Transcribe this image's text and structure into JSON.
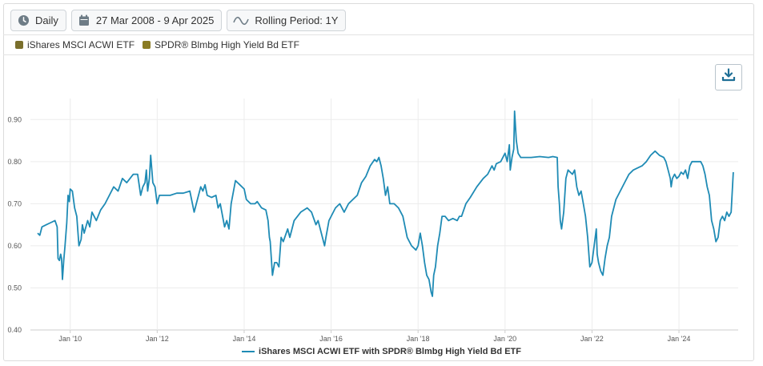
{
  "toolbar": {
    "frequency": "Daily",
    "date_range": "27 Mar 2008 - 9 Apr 2025",
    "rolling": "Rolling Period: 1Y"
  },
  "legend_top": [
    {
      "label": "iShares MSCI ACWI ETF",
      "color": "#7a6f2c"
    },
    {
      "label": "SPDR® Blmbg High Yield Bd ETF",
      "color": "#8a7b23"
    }
  ],
  "colors": {
    "line": "#1f8bb5",
    "grid": "#ececec",
    "axis": "#cccccc"
  },
  "chart_data": {
    "type": "line",
    "title": "",
    "xlabel": "",
    "ylabel": "",
    "ylim": [
      0.4,
      0.95
    ],
    "y_ticks": [
      "0.40",
      "0.50",
      "0.60",
      "0.70",
      "0.80",
      "0.90"
    ],
    "x_ticks": [
      "Jan '10",
      "Jan '12",
      "Jan '14",
      "Jan '16",
      "Jan '18",
      "Jan '20",
      "Jan '22",
      "Jan '24"
    ],
    "x_tick_years": [
      2010,
      2012,
      2014,
      2016,
      2018,
      2020,
      2022,
      2024
    ],
    "x_range": [
      2009.25,
      2025.27
    ],
    "series": [
      {
        "name": "iShares MSCI ACWI ETF with SPDR® Blmbg High Yield Bd ETF",
        "points": [
          [
            2009.25,
            0.63
          ],
          [
            2009.3,
            0.625
          ],
          [
            2009.35,
            0.645
          ],
          [
            2009.45,
            0.65
          ],
          [
            2009.55,
            0.655
          ],
          [
            2009.65,
            0.66
          ],
          [
            2009.7,
            0.645
          ],
          [
            2009.72,
            0.57
          ],
          [
            2009.75,
            0.565
          ],
          [
            2009.78,
            0.58
          ],
          [
            2009.8,
            0.57
          ],
          [
            2009.82,
            0.52
          ],
          [
            2009.85,
            0.565
          ],
          [
            2009.88,
            0.6
          ],
          [
            2009.92,
            0.655
          ],
          [
            2009.95,
            0.72
          ],
          [
            2009.98,
            0.705
          ],
          [
            2010.0,
            0.735
          ],
          [
            2010.05,
            0.73
          ],
          [
            2010.1,
            0.69
          ],
          [
            2010.15,
            0.67
          ],
          [
            2010.2,
            0.6
          ],
          [
            2010.25,
            0.615
          ],
          [
            2010.28,
            0.65
          ],
          [
            2010.32,
            0.63
          ],
          [
            2010.4,
            0.66
          ],
          [
            2010.45,
            0.645
          ],
          [
            2010.5,
            0.68
          ],
          [
            2010.6,
            0.66
          ],
          [
            2010.7,
            0.685
          ],
          [
            2010.8,
            0.7
          ],
          [
            2010.9,
            0.72
          ],
          [
            2011.0,
            0.74
          ],
          [
            2011.1,
            0.73
          ],
          [
            2011.2,
            0.76
          ],
          [
            2011.3,
            0.75
          ],
          [
            2011.45,
            0.77
          ],
          [
            2011.55,
            0.77
          ],
          [
            2011.62,
            0.72
          ],
          [
            2011.67,
            0.74
          ],
          [
            2011.72,
            0.75
          ],
          [
            2011.75,
            0.78
          ],
          [
            2011.78,
            0.73
          ],
          [
            2011.82,
            0.76
          ],
          [
            2011.85,
            0.815
          ],
          [
            2011.9,
            0.75
          ],
          [
            2011.95,
            0.74
          ],
          [
            2012.0,
            0.7
          ],
          [
            2012.05,
            0.72
          ],
          [
            2012.15,
            0.72
          ],
          [
            2012.3,
            0.72
          ],
          [
            2012.45,
            0.725
          ],
          [
            2012.6,
            0.725
          ],
          [
            2012.75,
            0.73
          ],
          [
            2012.85,
            0.68
          ],
          [
            2012.9,
            0.7
          ],
          [
            2013.0,
            0.74
          ],
          [
            2013.05,
            0.73
          ],
          [
            2013.1,
            0.745
          ],
          [
            2013.15,
            0.72
          ],
          [
            2013.25,
            0.715
          ],
          [
            2013.35,
            0.72
          ],
          [
            2013.4,
            0.69
          ],
          [
            2013.45,
            0.7
          ],
          [
            2013.55,
            0.645
          ],
          [
            2013.6,
            0.66
          ],
          [
            2013.65,
            0.64
          ],
          [
            2013.7,
            0.7
          ],
          [
            2013.8,
            0.755
          ],
          [
            2013.9,
            0.745
          ],
          [
            2014.0,
            0.735
          ],
          [
            2014.05,
            0.71
          ],
          [
            2014.15,
            0.7
          ],
          [
            2014.25,
            0.7
          ],
          [
            2014.3,
            0.705
          ],
          [
            2014.4,
            0.69
          ],
          [
            2014.5,
            0.685
          ],
          [
            2014.55,
            0.66
          ],
          [
            2014.58,
            0.62
          ],
          [
            2014.6,
            0.61
          ],
          [
            2014.65,
            0.53
          ],
          [
            2014.7,
            0.56
          ],
          [
            2014.75,
            0.56
          ],
          [
            2014.8,
            0.55
          ],
          [
            2014.85,
            0.62
          ],
          [
            2014.9,
            0.61
          ],
          [
            2015.0,
            0.64
          ],
          [
            2015.05,
            0.62
          ],
          [
            2015.15,
            0.66
          ],
          [
            2015.3,
            0.68
          ],
          [
            2015.45,
            0.69
          ],
          [
            2015.55,
            0.68
          ],
          [
            2015.65,
            0.65
          ],
          [
            2015.7,
            0.66
          ],
          [
            2015.75,
            0.64
          ],
          [
            2015.8,
            0.62
          ],
          [
            2015.85,
            0.6
          ],
          [
            2015.88,
            0.62
          ],
          [
            2015.95,
            0.66
          ],
          [
            2016.1,
            0.69
          ],
          [
            2016.2,
            0.7
          ],
          [
            2016.3,
            0.68
          ],
          [
            2016.4,
            0.7
          ],
          [
            2016.5,
            0.71
          ],
          [
            2016.6,
            0.72
          ],
          [
            2016.7,
            0.75
          ],
          [
            2016.8,
            0.765
          ],
          [
            2016.9,
            0.79
          ],
          [
            2017.0,
            0.805
          ],
          [
            2017.05,
            0.8
          ],
          [
            2017.1,
            0.81
          ],
          [
            2017.15,
            0.79
          ],
          [
            2017.2,
            0.76
          ],
          [
            2017.25,
            0.72
          ],
          [
            2017.3,
            0.74
          ],
          [
            2017.35,
            0.7
          ],
          [
            2017.45,
            0.7
          ],
          [
            2017.55,
            0.69
          ],
          [
            2017.65,
            0.67
          ],
          [
            2017.75,
            0.62
          ],
          [
            2017.85,
            0.6
          ],
          [
            2017.95,
            0.59
          ],
          [
            2018.0,
            0.6
          ],
          [
            2018.05,
            0.63
          ],
          [
            2018.1,
            0.6
          ],
          [
            2018.15,
            0.56
          ],
          [
            2018.2,
            0.53
          ],
          [
            2018.25,
            0.52
          ],
          [
            2018.3,
            0.49
          ],
          [
            2018.33,
            0.48
          ],
          [
            2018.36,
            0.53
          ],
          [
            2018.4,
            0.55
          ],
          [
            2018.45,
            0.6
          ],
          [
            2018.5,
            0.63
          ],
          [
            2018.55,
            0.67
          ],
          [
            2018.62,
            0.67
          ],
          [
            2018.7,
            0.66
          ],
          [
            2018.8,
            0.665
          ],
          [
            2018.9,
            0.66
          ],
          [
            2018.95,
            0.67
          ],
          [
            2019.0,
            0.67
          ],
          [
            2019.1,
            0.7
          ],
          [
            2019.2,
            0.715
          ],
          [
            2019.35,
            0.74
          ],
          [
            2019.5,
            0.76
          ],
          [
            2019.6,
            0.77
          ],
          [
            2019.7,
            0.79
          ],
          [
            2019.75,
            0.78
          ],
          [
            2019.8,
            0.795
          ],
          [
            2019.9,
            0.8
          ],
          [
            2020.0,
            0.82
          ],
          [
            2020.05,
            0.8
          ],
          [
            2020.1,
            0.84
          ],
          [
            2020.12,
            0.78
          ],
          [
            2020.16,
            0.81
          ],
          [
            2020.2,
            0.83
          ],
          [
            2020.22,
            0.92
          ],
          [
            2020.26,
            0.85
          ],
          [
            2020.3,
            0.82
          ],
          [
            2020.36,
            0.81
          ],
          [
            2020.45,
            0.81
          ],
          [
            2020.6,
            0.81
          ],
          [
            2020.8,
            0.812
          ],
          [
            2021.0,
            0.81
          ],
          [
            2021.1,
            0.812
          ],
          [
            2021.2,
            0.81
          ],
          [
            2021.22,
            0.74
          ],
          [
            2021.25,
            0.7
          ],
          [
            2021.27,
            0.66
          ],
          [
            2021.3,
            0.64
          ],
          [
            2021.35,
            0.68
          ],
          [
            2021.4,
            0.76
          ],
          [
            2021.45,
            0.78
          ],
          [
            2021.55,
            0.77
          ],
          [
            2021.6,
            0.78
          ],
          [
            2021.65,
            0.74
          ],
          [
            2021.7,
            0.72
          ],
          [
            2021.75,
            0.73
          ],
          [
            2021.8,
            0.7
          ],
          [
            2021.85,
            0.67
          ],
          [
            2021.9,
            0.62
          ],
          [
            2021.95,
            0.55
          ],
          [
            2022.0,
            0.56
          ],
          [
            2022.05,
            0.6
          ],
          [
            2022.1,
            0.64
          ],
          [
            2022.12,
            0.58
          ],
          [
            2022.15,
            0.56
          ],
          [
            2022.2,
            0.54
          ],
          [
            2022.25,
            0.53
          ],
          [
            2022.3,
            0.57
          ],
          [
            2022.35,
            0.6
          ],
          [
            2022.4,
            0.62
          ],
          [
            2022.45,
            0.67
          ],
          [
            2022.5,
            0.69
          ],
          [
            2022.55,
            0.71
          ],
          [
            2022.65,
            0.73
          ],
          [
            2022.75,
            0.75
          ],
          [
            2022.85,
            0.77
          ],
          [
            2022.95,
            0.78
          ],
          [
            2023.05,
            0.785
          ],
          [
            2023.15,
            0.79
          ],
          [
            2023.25,
            0.8
          ],
          [
            2023.35,
            0.815
          ],
          [
            2023.45,
            0.825
          ],
          [
            2023.55,
            0.815
          ],
          [
            2023.65,
            0.81
          ],
          [
            2023.7,
            0.8
          ],
          [
            2023.75,
            0.78
          ],
          [
            2023.8,
            0.76
          ],
          [
            2023.82,
            0.74
          ],
          [
            2023.85,
            0.76
          ],
          [
            2023.9,
            0.77
          ],
          [
            2023.95,
            0.76
          ],
          [
            2024.0,
            0.765
          ],
          [
            2024.05,
            0.775
          ],
          [
            2024.1,
            0.77
          ],
          [
            2024.15,
            0.78
          ],
          [
            2024.2,
            0.76
          ],
          [
            2024.25,
            0.79
          ],
          [
            2024.3,
            0.8
          ],
          [
            2024.4,
            0.8
          ],
          [
            2024.5,
            0.8
          ],
          [
            2024.55,
            0.79
          ],
          [
            2024.6,
            0.77
          ],
          [
            2024.65,
            0.74
          ],
          [
            2024.7,
            0.72
          ],
          [
            2024.75,
            0.66
          ],
          [
            2024.8,
            0.64
          ],
          [
            2024.85,
            0.61
          ],
          [
            2024.9,
            0.62
          ],
          [
            2024.95,
            0.66
          ],
          [
            2025.0,
            0.67
          ],
          [
            2025.05,
            0.66
          ],
          [
            2025.1,
            0.68
          ],
          [
            2025.15,
            0.67
          ],
          [
            2025.2,
            0.68
          ],
          [
            2025.25,
            0.775
          ]
        ]
      }
    ]
  }
}
